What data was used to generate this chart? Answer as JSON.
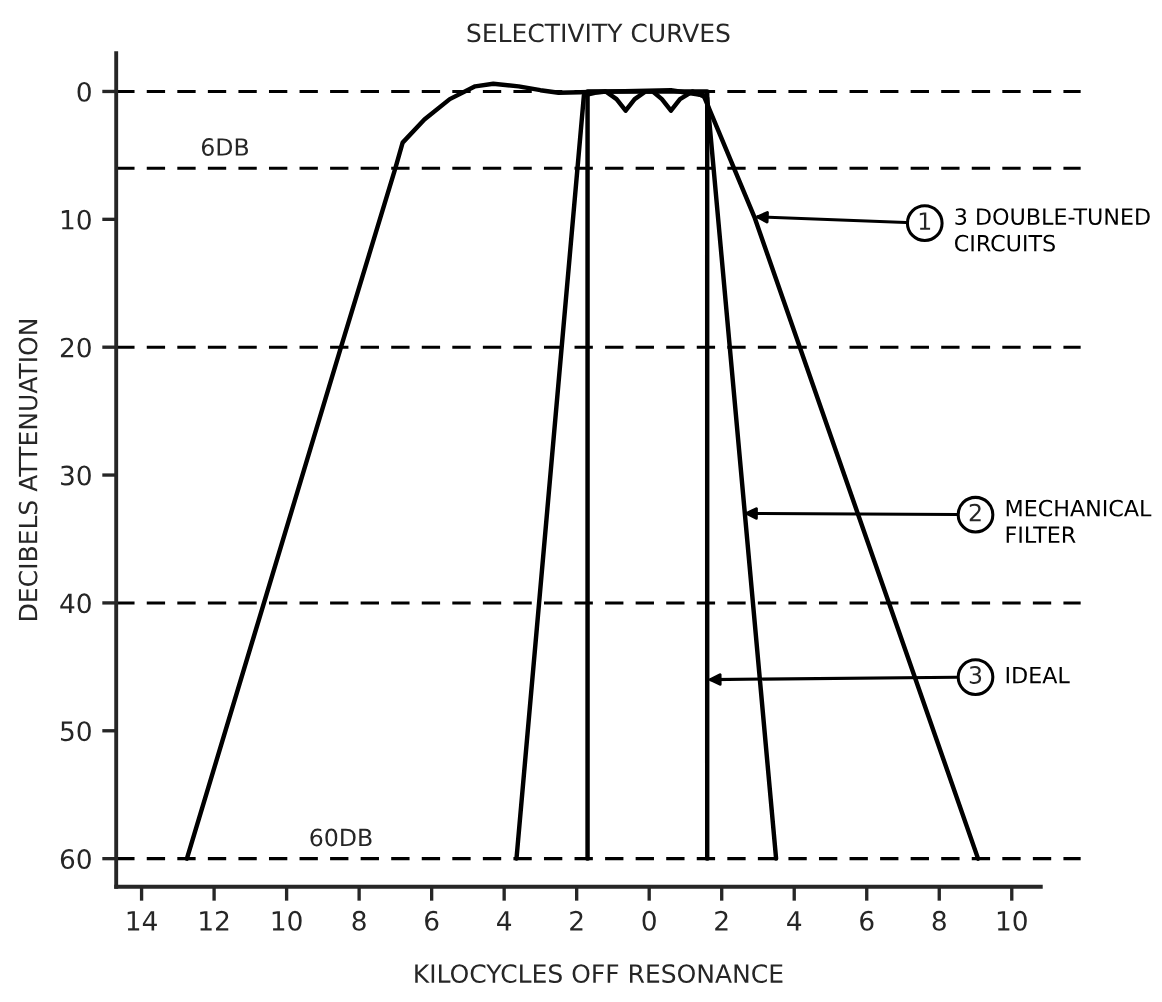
{
  "chart_data": {
    "type": "line",
    "title": "SELECTIVITY CURVES",
    "xlabel": "KILOCYCLES OFF RESONANCE",
    "ylabel": "DECIBELS ATTENUATION",
    "series": [
      {
        "name": "3 DOUBLE-TUNED\nCIRCUITS",
        "color": "#000000",
        "x": [
          -12.75,
          -8.5,
          -7.0,
          -6.8,
          -6.2,
          -5.5,
          -4.8,
          -4.3,
          -3.6,
          -3.0,
          -2.5,
          -1.0,
          0.6,
          1.5,
          2.9,
          9.07
        ],
        "values": [
          60,
          20,
          6,
          4,
          2.2,
          0.6,
          -0.4,
          -0.6,
          -0.4,
          -0.1,
          0.1,
          0,
          -0.1,
          0.3,
          9.8,
          60
        ]
      },
      {
        "name": "MECHANICAL\nFILTER",
        "color": "#000000",
        "x": [
          -3.66,
          -1.8,
          -1.5,
          -1.2,
          -0.9,
          -0.65,
          -0.4,
          -0.1,
          0.1,
          0.35,
          0.6,
          0.85,
          1.2,
          1.6,
          3.5
        ],
        "values": [
          60,
          0.3,
          0.1,
          0,
          0.6,
          1.5,
          0.6,
          0,
          0,
          0.6,
          1.5,
          0.6,
          0,
          0.5,
          60
        ]
      },
      {
        "name": "IDEAL",
        "color": "#000000",
        "x": [
          -1.7,
          -1.7,
          1.6,
          1.6
        ],
        "values": [
          60,
          0,
          0,
          60
        ]
      }
    ],
    "annotations": [
      {
        "text": "1",
        "x": 2.9,
        "y": 9.8
      },
      {
        "text": "2",
        "x": 2.6,
        "y": 33
      },
      {
        "text": "3",
        "x": 1.6,
        "y": 46
      }
    ],
    "ref_lines": [
      {
        "axis": "y",
        "value": 0,
        "label": null,
        "line_style": "dashed"
      },
      {
        "axis": "y",
        "value": 6,
        "label": "6DB",
        "line_style": "dashed"
      },
      {
        "axis": "y",
        "value": 20,
        "label": null,
        "line_style": "dashed"
      },
      {
        "axis": "y",
        "value": 40,
        "label": null,
        "line_style": "dashed"
      },
      {
        "axis": "y",
        "value": 60,
        "label": "60DB",
        "line_style": "dashed"
      }
    ],
    "xlim": [
      -14.7,
      11.9
    ],
    "ylim": [
      62.2,
      -3
    ],
    "xticks": [
      {
        "value": -14,
        "label": "14"
      },
      {
        "value": -12,
        "label": "12"
      },
      {
        "value": -10,
        "label": "10"
      },
      {
        "value": -8,
        "label": "8"
      },
      {
        "value": -6,
        "label": "6"
      },
      {
        "value": -4,
        "label": "4"
      },
      {
        "value": -2,
        "label": "2"
      },
      0,
      2,
      4,
      6,
      8,
      10
    ],
    "yticks": [
      0,
      10,
      20,
      30,
      40,
      50,
      60
    ],
    "grid": false,
    "legend": "right",
    "marker": "none",
    "line_style": "solid"
  }
}
